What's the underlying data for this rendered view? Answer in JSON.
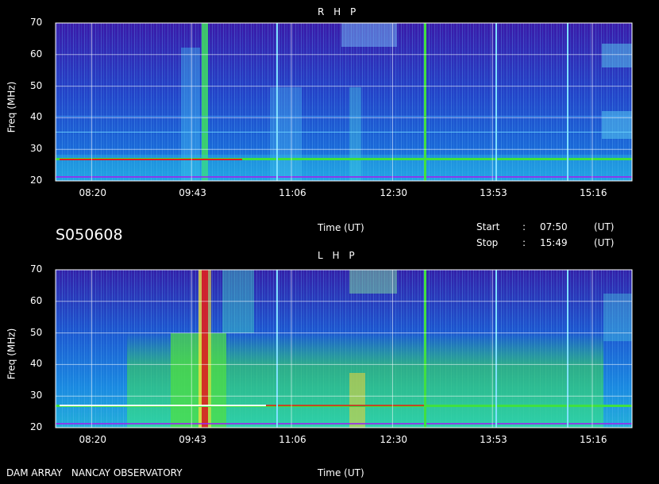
{
  "session_id": "S050608",
  "start": {
    "label": "Start",
    "sep": ":",
    "time": "07:50",
    "unit": "(UT)"
  },
  "stop": {
    "label": "Stop",
    "sep": ":",
    "time": "15:49",
    "unit": "(UT)"
  },
  "footer": {
    "observatory": "DAM ARRAY   NANCAY OBSERVATORY"
  },
  "colors": {
    "background": "#000000",
    "low": "#3a1a9e",
    "mid": "#1d7fe0",
    "high": "#38d838",
    "max": "#e02020"
  },
  "chart_data": [
    {
      "type": "heatmap",
      "title": "R H P",
      "xlabel": "Time (UT)",
      "ylabel": "Freq (MHz)",
      "x_ticks": [
        "08:20",
        "09:43",
        "11:06",
        "12:30",
        "13:53",
        "15:16"
      ],
      "y_ticks": [
        "20",
        "30",
        "40",
        "50",
        "60",
        "70"
      ],
      "ylim": [
        20,
        70
      ],
      "xlim": [
        "07:50",
        "15:49"
      ],
      "grid": true
    },
    {
      "type": "heatmap",
      "title": "L H P",
      "xlabel": "Time (UT)",
      "ylabel": "Freq (MHz)",
      "x_ticks": [
        "08:20",
        "09:43",
        "11:06",
        "12:30",
        "13:53",
        "15:16"
      ],
      "y_ticks": [
        "20",
        "30",
        "40",
        "50",
        "60",
        "70"
      ],
      "ylim": [
        20,
        70
      ],
      "xlim": [
        "07:50",
        "15:49"
      ],
      "grid": true
    }
  ]
}
